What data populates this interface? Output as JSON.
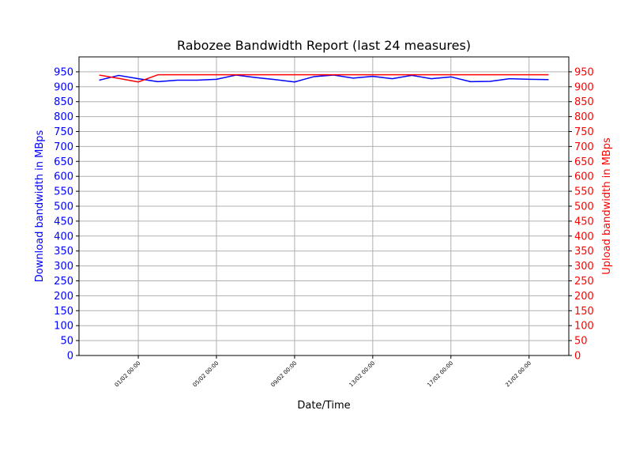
{
  "chart_data": {
    "type": "line",
    "title": "Rabozee Bandwidth Report (last 24 measures)",
    "xlabel": "Date/Time",
    "ylabel_left": "Download bandwidth in MBps",
    "ylabel_right": "Upload bandwidth in MBps",
    "ylim": [
      0,
      1000
    ],
    "ytick_values": [
      0,
      50,
      100,
      150,
      200,
      250,
      300,
      350,
      400,
      450,
      500,
      550,
      600,
      650,
      700,
      750,
      800,
      850,
      900,
      950
    ],
    "x_tick_labels": [
      "01/02 00:00",
      "05/02 00:00",
      "09/02 00:00",
      "13/02 00:00",
      "17/02 00:00",
      "21/02 00:00"
    ],
    "x_tick_dates": [
      "2024-02-01",
      "2024-02-05",
      "2024-02-09",
      "2024-02-13",
      "2024-02-17",
      "2024-02-21"
    ],
    "x": [
      "2024-01-30",
      "2024-01-31",
      "2024-02-01",
      "2024-02-02",
      "2024-02-03",
      "2024-02-04",
      "2024-02-05",
      "2024-02-06",
      "2024-02-07",
      "2024-02-08",
      "2024-02-09",
      "2024-02-10",
      "2024-02-11",
      "2024-02-12",
      "2024-02-13",
      "2024-02-14",
      "2024-02-15",
      "2024-02-16",
      "2024-02-17",
      "2024-02-18",
      "2024-02-19",
      "2024-02-20",
      "2024-02-21",
      "2024-02-22"
    ],
    "grid": true,
    "series": [
      {
        "axis": "left",
        "color": "#0000ff",
        "values": [
          922,
          938,
          927,
          917,
          922,
          922,
          925,
          939,
          931,
          924,
          916,
          934,
          939,
          929,
          935,
          927,
          938,
          927,
          933,
          917,
          918,
          927,
          925,
          924
        ]
      },
      {
        "axis": "right",
        "color": "#ff0000",
        "values": [
          939,
          928,
          916,
          940,
          940,
          940,
          940,
          940,
          940,
          940,
          940,
          940,
          940,
          940,
          940,
          940,
          940,
          940,
          940,
          940,
          940,
          940,
          940,
          940
        ]
      }
    ]
  }
}
